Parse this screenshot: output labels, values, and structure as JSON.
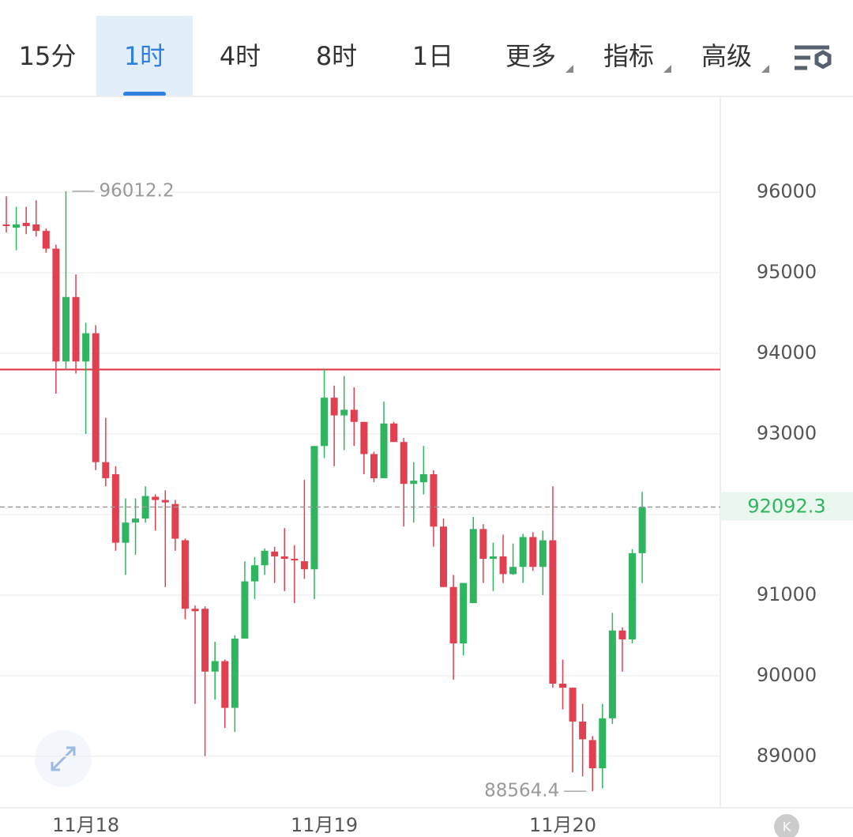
{
  "tabs": [
    {
      "label": "15分"
    },
    {
      "label": "1时"
    },
    {
      "label": "4时"
    },
    {
      "label": "8时"
    },
    {
      "label": "1日"
    },
    {
      "label": "更多",
      "dropdown": true
    },
    {
      "label": "指标",
      "dropdown": true
    },
    {
      "label": "高级",
      "dropdown": true
    }
  ],
  "active_tab": 1,
  "logo": "K",
  "chart_data": {
    "type": "candlestick",
    "categories": [
      null,
      null,
      null,
      null,
      null,
      null,
      null,
      null,
      "11月18",
      null,
      null,
      null,
      null,
      null,
      null,
      null,
      null,
      null,
      null,
      null,
      null,
      null,
      null,
      null,
      null,
      null,
      null,
      null,
      null,
      null,
      null,
      null,
      "11月19",
      null,
      null,
      null,
      null,
      null,
      null,
      null,
      null,
      null,
      null,
      null,
      null,
      null,
      null,
      null,
      null,
      null,
      null,
      null,
      null,
      null,
      null,
      null,
      "11月20",
      null,
      null,
      null,
      null,
      null,
      null,
      null,
      null
    ],
    "open": [
      95600,
      95560,
      95620,
      95600,
      95520,
      95300,
      93900,
      94700,
      93900,
      94250,
      92650,
      92500,
      91650,
      91900,
      91950,
      92220,
      92180,
      92130,
      91680,
      90830,
      90830,
      90050,
      90180,
      89600,
      90460,
      91170,
      91370,
      91540,
      91480,
      91450,
      91420,
      91320,
      92850,
      93450,
      93230,
      93300,
      93150,
      92750,
      92450,
      93130,
      92900,
      92380,
      92400,
      92500,
      91850,
      91100,
      90400,
      90900,
      91820,
      91450,
      91480,
      91260,
      91350,
      91720,
      91350,
      91680,
      89900,
      89850,
      89430,
      89200,
      88850,
      89470,
      90560,
      90450,
      91520
    ],
    "high": [
      95950,
      95820,
      95820,
      95900,
      95550,
      95350,
      96012.2,
      94980,
      94380,
      94350,
      93200,
      92600,
      92200,
      92200,
      92350,
      92250,
      92300,
      92180,
      91700,
      90870,
      90860,
      90420,
      90200,
      90500,
      91420,
      91470,
      91580,
      91600,
      91830,
      91620,
      92430,
      92850,
      93800,
      93600,
      93720,
      93580,
      93150,
      92780,
      93400,
      93150,
      92950,
      92650,
      92850,
      92550,
      91950,
      91250,
      91150,
      91970,
      91880,
      91650,
      91750,
      91640,
      91760,
      91780,
      91800,
      92350,
      90200,
      89850,
      89650,
      89250,
      89650,
      90780,
      90600,
      91570,
      92280
    ],
    "low": [
      95500,
      95280,
      95480,
      95450,
      95250,
      93500,
      93800,
      93750,
      93000,
      92550,
      92350,
      91550,
      91250,
      91500,
      91900,
      91800,
      91100,
      91550,
      90700,
      89650,
      89000,
      89700,
      89350,
      89300,
      90460,
      90950,
      91250,
      91150,
      91050,
      90900,
      91200,
      90950,
      92700,
      92600,
      92800,
      92850,
      92500,
      92400,
      92450,
      92900,
      91850,
      91900,
      92250,
      91600,
      91100,
      89950,
      90250,
      90900,
      91150,
      91050,
      91150,
      91250,
      91150,
      91300,
      91000,
      89850,
      89580,
      88800,
      88750,
      88564.4,
      88600,
      89400,
      90050,
      90400,
      91150
    ],
    "close": [
      95580,
      95600,
      95580,
      95520,
      95300,
      93900,
      94700,
      93900,
      94250,
      92650,
      92450,
      91650,
      91900,
      91950,
      92230,
      92180,
      92150,
      91700,
      90830,
      90800,
      90050,
      90180,
      89600,
      90460,
      91170,
      91370,
      91550,
      91480,
      91450,
      91430,
      91320,
      92850,
      93450,
      93230,
      93300,
      93150,
      92750,
      92450,
      93130,
      92900,
      92380,
      92420,
      92500,
      91850,
      91100,
      90400,
      91150,
      91820,
      91450,
      91480,
      91260,
      91350,
      91720,
      91350,
      91680,
      89900,
      89850,
      89430,
      89210,
      88850,
      89470,
      90560,
      90450,
      91520,
      92092.3
    ],
    "up_color": "#2fb45f",
    "down_color": "#e0404f",
    "high_label": 96012.2,
    "low_label": 88564.4,
    "last_price": 92092.3,
    "reference_line": {
      "value": 93800,
      "color": "#e0303f"
    },
    "ylim": [
      88360,
      97160
    ],
    "yticks": [
      89000,
      90000,
      91000,
      92000,
      93000,
      94000,
      95000,
      96000
    ],
    "grid": true
  }
}
